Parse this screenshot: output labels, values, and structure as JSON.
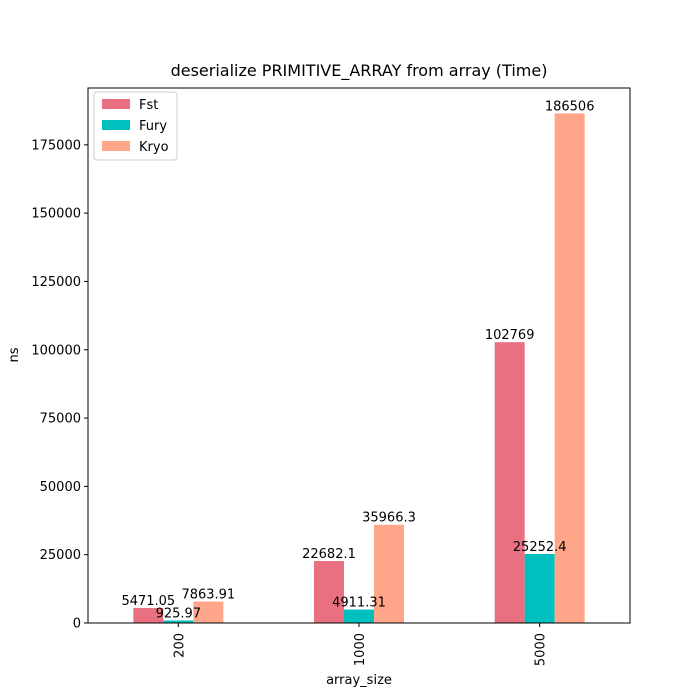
{
  "chart_data": {
    "type": "bar",
    "title": "deserialize PRIMITIVE_ARRAY from array (Time)",
    "xlabel": "array_size",
    "ylabel": "ns",
    "categories": [
      "200",
      "1000",
      "5000"
    ],
    "series": [
      {
        "name": "Fst",
        "color": "#e87081",
        "values": [
          5471.05,
          22682.1,
          102769
        ],
        "labels": [
          "5471.05",
          "22682.1",
          "102769"
        ]
      },
      {
        "name": "Fury",
        "color": "#00bfbf",
        "values": [
          925.97,
          4911.31,
          25252.4
        ],
        "labels": [
          "925.97",
          "4911.31",
          "25252.4"
        ]
      },
      {
        "name": "Kryo",
        "color": "#ffa68a",
        "values": [
          7863.91,
          35966.3,
          186506
        ],
        "labels": [
          "7863.91",
          "35966.3",
          "186506"
        ]
      }
    ],
    "ylim": [
      0,
      195800
    ],
    "yticks": [
      0,
      25000,
      50000,
      75000,
      100000,
      125000,
      150000,
      175000
    ],
    "yticklabels": [
      "0",
      "25000",
      "50000",
      "75000",
      "100000",
      "125000",
      "150000",
      "175000"
    ],
    "legend_position": "top-left",
    "grid": false
  }
}
